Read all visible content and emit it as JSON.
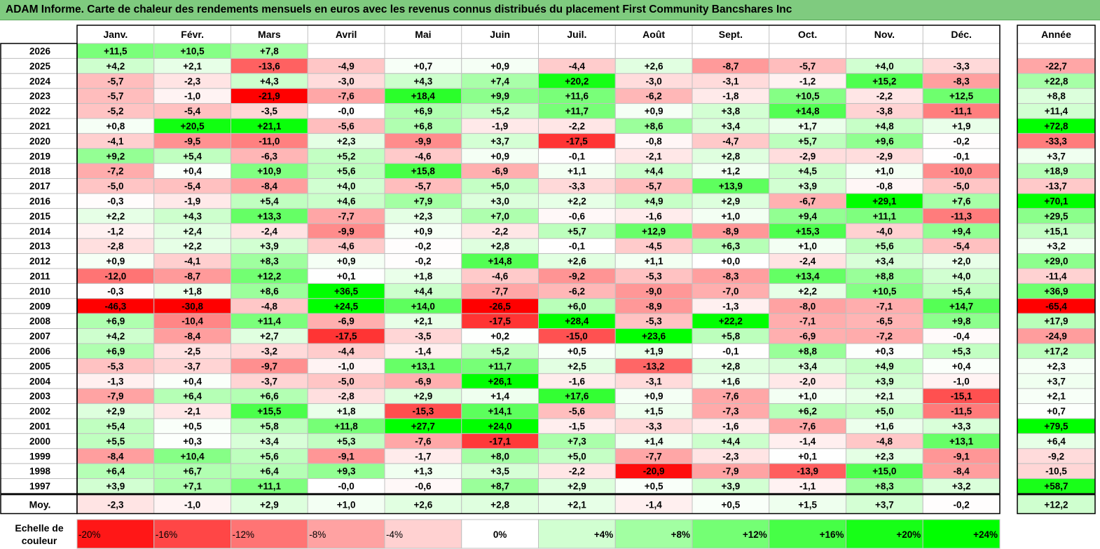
{
  "title": "ADAM Informe. Carte de chaleur des rendements mensuels en euros avec les revenus connus distribués du placement First Community Bancshares Inc",
  "chart_data": {
    "type": "heatmap",
    "title": "ADAM Informe. Carte de chaleur des rendements mensuels en euros avec les revenus connus distribués du placement First Community Bancshares Inc",
    "columns": [
      "Janv.",
      "Févr.",
      "Mars",
      "Avril",
      "Mai",
      "Juin",
      "Juil.",
      "Août",
      "Sept.",
      "Oct.",
      "Nov.",
      "Déc."
    ],
    "year_header": "Année",
    "rows": [
      {
        "label": "2026",
        "months": [
          "+11,5",
          "+10,5",
          "+7,8",
          "",
          "",
          "",
          "",
          "",
          "",
          "",
          "",
          ""
        ],
        "year": ""
      },
      {
        "label": "2025",
        "months": [
          "+4,2",
          "+2,1",
          "-13,6",
          "-4,9",
          "+0,7",
          "+0,9",
          "-4,4",
          "+2,6",
          "-8,7",
          "-5,7",
          "+4,0",
          "-3,3"
        ],
        "year": "-22,7"
      },
      {
        "label": "2024",
        "months": [
          "-5,7",
          "-2,3",
          "+4,3",
          "-3,0",
          "+4,3",
          "+7,4",
          "+20,2",
          "-3,0",
          "-3,1",
          "-1,2",
          "+15,2",
          "-8,3"
        ],
        "year": "+22,8"
      },
      {
        "label": "2023",
        "months": [
          "-5,7",
          "-1,0",
          "-21,9",
          "-7,6",
          "+18,4",
          "+9,9",
          "+11,6",
          "-6,2",
          "-1,8",
          "+10,5",
          "-2,2",
          "+12,5"
        ],
        "year": "+8,8"
      },
      {
        "label": "2022",
        "months": [
          "-5,2",
          "-5,4",
          "-3,5",
          "-0,0",
          "+6,9",
          "+5,2",
          "+11,7",
          "+0,9",
          "+3,8",
          "+14,8",
          "-3,8",
          "-11,1"
        ],
        "year": "+11,4"
      },
      {
        "label": "2021",
        "months": [
          "+0,8",
          "+20,5",
          "+21,1",
          "-5,6",
          "+6,8",
          "-1,9",
          "-2,2",
          "+8,6",
          "+3,4",
          "+1,7",
          "+4,8",
          "+1,9"
        ],
        "year": "+72,8"
      },
      {
        "label": "2020",
        "months": [
          "-4,1",
          "-9,5",
          "-11,0",
          "+2,3",
          "-9,9",
          "+3,7",
          "-17,5",
          "-0,8",
          "-4,7",
          "+5,7",
          "+9,6",
          "-0,2"
        ],
        "year": "-33,3"
      },
      {
        "label": "2019",
        "months": [
          "+9,2",
          "+5,4",
          "-6,3",
          "+5,2",
          "-4,6",
          "+0,9",
          "-0,1",
          "-2,1",
          "+2,8",
          "-2,9",
          "-2,9",
          "-0,1"
        ],
        "year": "+3,7"
      },
      {
        "label": "2018",
        "months": [
          "-7,2",
          "+0,4",
          "+10,9",
          "+5,6",
          "+15,8",
          "-6,9",
          "+1,1",
          "+4,4",
          "+1,2",
          "+4,5",
          "+1,0",
          "-10,0"
        ],
        "year": "+18,9"
      },
      {
        "label": "2017",
        "months": [
          "-5,0",
          "-5,4",
          "-8,4",
          "+4,0",
          "-5,7",
          "+5,0",
          "-3,3",
          "-5,7",
          "+13,9",
          "+3,9",
          "-0,8",
          "-5,0"
        ],
        "year": "-13,7"
      },
      {
        "label": "2016",
        "months": [
          "-0,3",
          "-1,9",
          "+5,4",
          "+4,6",
          "+7,9",
          "+3,0",
          "+2,2",
          "+4,9",
          "+2,9",
          "-6,7",
          "+29,1",
          "+7,6"
        ],
        "year": "+70,1"
      },
      {
        "label": "2015",
        "months": [
          "+2,2",
          "+4,3",
          "+13,3",
          "-7,7",
          "+2,3",
          "+7,0",
          "-0,6",
          "-1,6",
          "+1,0",
          "+9,4",
          "+11,1",
          "-11,3"
        ],
        "year": "+29,5"
      },
      {
        "label": "2014",
        "months": [
          "-1,2",
          "+2,4",
          "-2,4",
          "-9,9",
          "+0,9",
          "-2,2",
          "+5,7",
          "+12,9",
          "-8,9",
          "+15,3",
          "-4,0",
          "+9,4"
        ],
        "year": "+15,1"
      },
      {
        "label": "2013",
        "months": [
          "-2,8",
          "+2,2",
          "+3,9",
          "-4,6",
          "-0,2",
          "+2,8",
          "-0,1",
          "-4,5",
          "+6,3",
          "+1,0",
          "+5,6",
          "-5,4"
        ],
        "year": "+3,2"
      },
      {
        "label": "2012",
        "months": [
          "+0,9",
          "-4,1",
          "+8,3",
          "+0,9",
          "-0,2",
          "+14,8",
          "+2,6",
          "+1,1",
          "+0,0",
          "-2,4",
          "+3,4",
          "+2,0"
        ],
        "year": "+29,0"
      },
      {
        "label": "2011",
        "months": [
          "-12,0",
          "-8,7",
          "+12,2",
          "+0,1",
          "+1,8",
          "-4,6",
          "-9,2",
          "-5,3",
          "-8,3",
          "+13,4",
          "+8,8",
          "+4,0"
        ],
        "year": "-11,4"
      },
      {
        "label": "2010",
        "months": [
          "-0,3",
          "+1,8",
          "+8,6",
          "+36,5",
          "+4,4",
          "-7,7",
          "-6,2",
          "-9,0",
          "-7,0",
          "+2,2",
          "+10,5",
          "+5,4"
        ],
        "year": "+36,9"
      },
      {
        "label": "2009",
        "months": [
          "-46,3",
          "-30,8",
          "-4,8",
          "+24,5",
          "+14,0",
          "-26,5",
          "+6,0",
          "-8,9",
          "-1,3",
          "-8,0",
          "-7,1",
          "+14,7"
        ],
        "year": "-65,4"
      },
      {
        "label": "2008",
        "months": [
          "+6,9",
          "-10,4",
          "+11,4",
          "-6,9",
          "+2,1",
          "-17,5",
          "+28,4",
          "-5,3",
          "+22,2",
          "-7,1",
          "-6,5",
          "+9,8"
        ],
        "year": "+17,9"
      },
      {
        "label": "2007",
        "months": [
          "+4,2",
          "-8,4",
          "+2,7",
          "-17,5",
          "-3,5",
          "+0,2",
          "-15,0",
          "+23,6",
          "+5,8",
          "-6,9",
          "-7,2",
          "-0,4"
        ],
        "year": "-24,9"
      },
      {
        "label": "2006",
        "months": [
          "+6,9",
          "-2,5",
          "-3,2",
          "-4,4",
          "-1,4",
          "+5,2",
          "+0,5",
          "+1,9",
          "-0,1",
          "+8,8",
          "+0,3",
          "+5,3"
        ],
        "year": "+17,2"
      },
      {
        "label": "2005",
        "months": [
          "-5,3",
          "-3,7",
          "-9,7",
          "-1,0",
          "+13,1",
          "+11,7",
          "+2,5",
          "-13,2",
          "+2,8",
          "+3,4",
          "+4,9",
          "+0,4"
        ],
        "year": "+2,3"
      },
      {
        "label": "2004",
        "months": [
          "-1,3",
          "+0,4",
          "-3,7",
          "-5,0",
          "-6,9",
          "+26,1",
          "-1,6",
          "-3,1",
          "+1,6",
          "-2,0",
          "+3,9",
          "-1,0"
        ],
        "year": "+3,7"
      },
      {
        "label": "2003",
        "months": [
          "-7,9",
          "+6,4",
          "+6,6",
          "-2,8",
          "+2,9",
          "+1,4",
          "+17,6",
          "+0,9",
          "-7,6",
          "+1,0",
          "+2,1",
          "-15,1"
        ],
        "year": "+2,1"
      },
      {
        "label": "2002",
        "months": [
          "+2,9",
          "-2,1",
          "+15,5",
          "+1,8",
          "-15,3",
          "+14,1",
          "-5,6",
          "+1,5",
          "-7,3",
          "+6,2",
          "+5,0",
          "-11,5"
        ],
        "year": "+0,7"
      },
      {
        "label": "2001",
        "months": [
          "+5,4",
          "+0,5",
          "+5,8",
          "+11,8",
          "+27,7",
          "+24,0",
          "-1,5",
          "-3,3",
          "-1,6",
          "-7,6",
          "+1,6",
          "+3,3"
        ],
        "year": "+79,5"
      },
      {
        "label": "2000",
        "months": [
          "+5,5",
          "+0,3",
          "+3,4",
          "+5,3",
          "-7,6",
          "-17,1",
          "+7,3",
          "+1,4",
          "+4,4",
          "-1,4",
          "-4,8",
          "+13,1"
        ],
        "year": "+6,4"
      },
      {
        "label": "1999",
        "months": [
          "-8,4",
          "+10,4",
          "+5,6",
          "-9,1",
          "-1,7",
          "+8,0",
          "+5,0",
          "-7,7",
          "-2,3",
          "+0,1",
          "+2,3",
          "-9,1"
        ],
        "year": "-9,2"
      },
      {
        "label": "1998",
        "months": [
          "+6,4",
          "+6,7",
          "+6,4",
          "+9,3",
          "+1,3",
          "+3,5",
          "-2,2",
          "-20,9",
          "-7,9",
          "-13,9",
          "+15,0",
          "-8,4"
        ],
        "year": "-10,5"
      },
      {
        "label": "1997",
        "months": [
          "+3,9",
          "+7,1",
          "+11,1",
          "-0,0",
          "-0,6",
          "+8,7",
          "+2,9",
          "+0,5",
          "+3,9",
          "-1,1",
          "+8,3",
          "+3,2"
        ],
        "year": "+58,7"
      }
    ],
    "average": {
      "label": "Moy.",
      "months": [
        "-2,3",
        "-1,0",
        "+2,9",
        "+1,0",
        "+2,6",
        "+2,8",
        "+2,1",
        "-1,4",
        "+0,5",
        "+1,5",
        "+3,7",
        "-0,2"
      ],
      "year": "+12,2"
    },
    "scale": {
      "label_line1": "Echelle de",
      "label_line2": "couleur",
      "steps": [
        "-20%",
        "-16%",
        "-12%",
        "-8%",
        "-4%",
        "0%",
        "+4%",
        "+8%",
        "+12%",
        "+16%",
        "+20%",
        "+24%"
      ]
    },
    "colors": {
      "title_bar": "#7fcb7f",
      "negative_max": "#ff0000",
      "neutral": "#ffffff",
      "positive_max": "#00ff00",
      "grid": "#c0c0c0",
      "border": "#000000"
    }
  }
}
